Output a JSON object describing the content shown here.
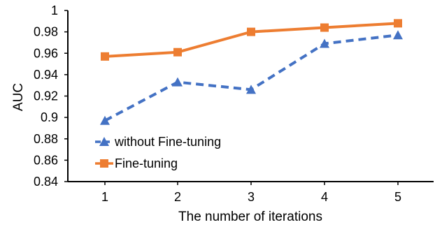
{
  "chart_data": {
    "type": "line",
    "title": "",
    "xlabel": "The number of iterations",
    "ylabel": "AUC",
    "categories": [
      "1",
      "2",
      "3",
      "4",
      "5"
    ],
    "ylim": [
      0.84,
      1.0
    ],
    "yticks": [
      "0.84",
      "0.86",
      "0.88",
      "0.9",
      "0.92",
      "0.94",
      "0.96",
      "0.98",
      "1"
    ],
    "grid": false,
    "legend_position": "bottom-left",
    "series": [
      {
        "name": "without Fine-tuning",
        "values": [
          0.897,
          0.933,
          0.926,
          0.969,
          0.977
        ],
        "color": "#4472C4",
        "line_style": "dashed",
        "marker": "triangle"
      },
      {
        "name": "Fine-tuning",
        "values": [
          0.957,
          0.961,
          0.98,
          0.984,
          0.988
        ],
        "color": "#ED7D31",
        "line_style": "solid",
        "marker": "square"
      }
    ]
  }
}
